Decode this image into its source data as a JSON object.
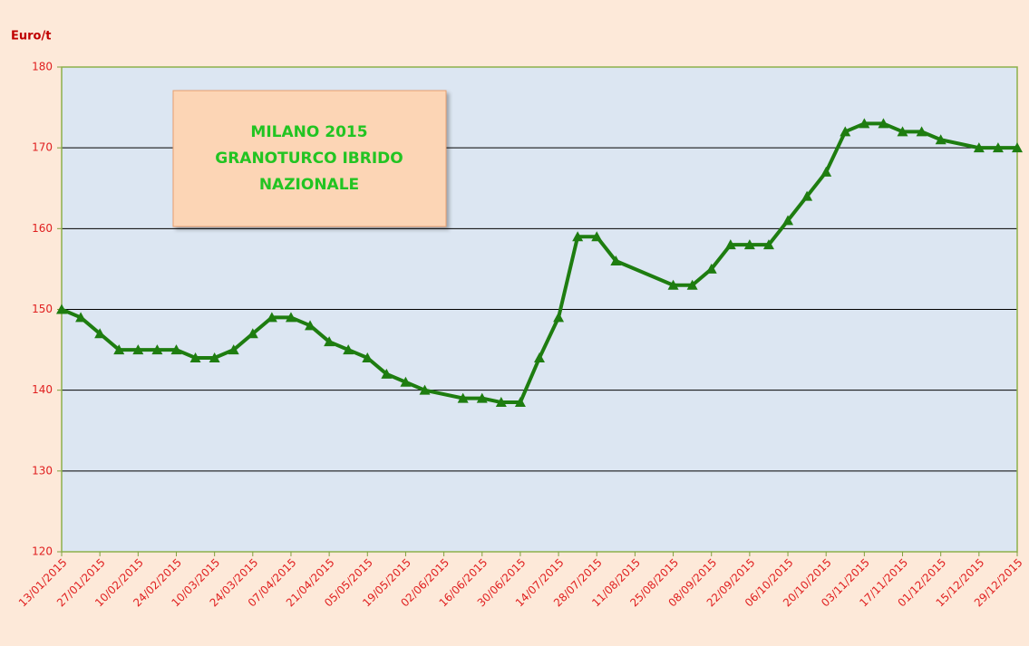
{
  "chart_data": {
    "type": "line",
    "y_label": "Euro/t",
    "annotation": [
      "MILANO 2015",
      "GRANOTURCO IBRIDO",
      "NAZIONALE"
    ],
    "x": [
      "13/01/2015",
      "20/01/2015",
      "27/01/2015",
      "03/02/2015",
      "10/02/2015",
      "17/02/2015",
      "24/02/2015",
      "03/03/2015",
      "10/03/2015",
      "17/03/2015",
      "24/03/2015",
      "31/03/2015",
      "07/04/2015",
      "14/04/2015",
      "21/04/2015",
      "28/04/2015",
      "05/05/2015",
      "12/05/2015",
      "19/05/2015",
      "26/05/2015",
      "09/06/2015",
      "16/06/2015",
      "23/06/2015",
      "30/06/2015",
      "07/07/2015",
      "14/07/2015",
      "21/07/2015",
      "28/07/2015",
      "04/08/2015",
      "25/08/2015",
      "01/09/2015",
      "08/09/2015",
      "15/09/2015",
      "22/09/2015",
      "29/09/2015",
      "06/10/2015",
      "13/10/2015",
      "20/10/2015",
      "27/10/2015",
      "03/11/2015",
      "10/11/2015",
      "17/11/2015",
      "24/11/2015",
      "01/12/2015",
      "15/12/2015",
      "22/12/2015",
      "29/12/2015"
    ],
    "series": [
      {
        "color": "#1e7d10",
        "values": [
          150,
          149,
          147,
          145,
          145,
          145,
          145,
          144,
          144,
          145,
          147,
          149,
          149,
          148,
          146,
          145,
          144,
          142,
          141,
          140,
          139,
          139,
          138.5,
          138.5,
          144,
          149,
          159,
          159,
          156,
          153,
          153,
          155,
          158,
          158,
          158,
          161,
          164,
          167,
          172,
          173,
          173,
          172,
          172,
          171,
          170,
          170,
          170
        ]
      }
    ],
    "xlim": [
      "13/01/2015",
      "29/12/2015"
    ],
    "xticks": [
      "13/01/2015",
      "27/01/2015",
      "10/02/2015",
      "24/02/2015",
      "10/03/2015",
      "24/03/2015",
      "07/04/2015",
      "21/04/2015",
      "05/05/2015",
      "19/05/2015",
      "02/06/2015",
      "16/06/2015",
      "30/06/2015",
      "14/07/2015",
      "28/07/2015",
      "11/08/2015",
      "25/08/2015",
      "08/09/2015",
      "22/09/2015",
      "06/10/2015",
      "20/10/2015",
      "03/11/2015",
      "17/11/2015",
      "01/12/2015",
      "15/12/2015",
      "29/12/2015"
    ],
    "ylim": [
      120,
      180
    ],
    "yticks": [
      120,
      130,
      140,
      150,
      160,
      170,
      180
    ],
    "grid": true
  }
}
